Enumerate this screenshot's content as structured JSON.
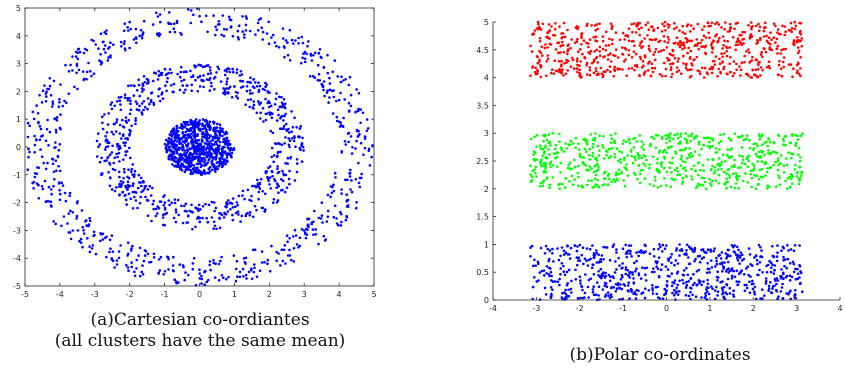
{
  "chart_data": [
    {
      "type": "scatter",
      "caption_lines": [
        "(a)Cartesian co-ordiantes",
        "(all clusters have the same mean)"
      ],
      "xlim": [
        -5,
        5
      ],
      "ylim": [
        -5,
        5
      ],
      "xticks": [
        -5,
        -4,
        -3,
        -2,
        -1,
        0,
        1,
        2,
        3,
        4,
        5
      ],
      "yticks": [
        -5,
        -4,
        -3,
        -2,
        -1,
        0,
        1,
        2,
        3,
        4,
        5
      ],
      "grid": false,
      "box": true,
      "series": [
        {
          "color": "#0000ff",
          "shape": "disk",
          "radius": [
            0,
            1
          ],
          "count": 700
        },
        {
          "color": "#0000ff",
          "shape": "annulus",
          "radius": [
            2,
            3
          ],
          "count": 700
        },
        {
          "color": "#0000ff",
          "shape": "annulus",
          "radius": [
            4,
            5
          ],
          "count": 700
        }
      ]
    },
    {
      "type": "scatter",
      "caption_lines": [
        "(b)Polar co-ordinates"
      ],
      "xlim": [
        -4,
        4
      ],
      "ylim": [
        0,
        5
      ],
      "xticks": [
        -4,
        -3,
        -2,
        -1,
        0,
        1,
        2,
        3,
        4
      ],
      "yticks": [
        0,
        0.5,
        1,
        1.5,
        2,
        2.5,
        3,
        3.5,
        4,
        4.5,
        5
      ],
      "grid": false,
      "box": false,
      "series": [
        {
          "color": "#0000ff",
          "x_range": [
            -3.14,
            3.14
          ],
          "y_range": [
            0,
            1
          ],
          "count": 700
        },
        {
          "color": "#00ff00",
          "x_range": [
            -3.14,
            3.14
          ],
          "y_range": [
            2,
            3
          ],
          "count": 700
        },
        {
          "color": "#ff0000",
          "x_range": [
            -3.14,
            3.14
          ],
          "y_range": [
            4,
            5
          ],
          "count": 700
        }
      ]
    }
  ]
}
